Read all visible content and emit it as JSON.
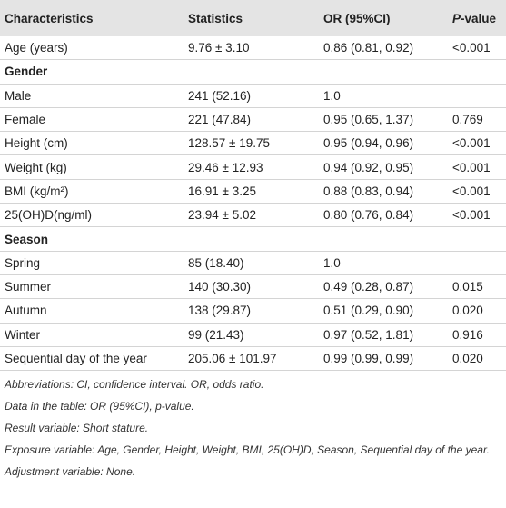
{
  "table": {
    "header": [
      "Characteristics",
      "Statistics",
      "OR (95%CI)",
      {
        "em": "P",
        "text": "-value"
      }
    ],
    "rows": [
      [
        "Age (years)",
        "9.76 ± 3.10",
        "0.86 (0.81, 0.92)",
        "<0.001"
      ],
      [
        "Gender"
      ],
      [
        "Male",
        "241 (52.16)",
        "1.0",
        ""
      ],
      [
        "Female",
        "221 (47.84)",
        "0.95 (0.65, 1.37)",
        "0.769"
      ],
      [
        "Height (cm)",
        "128.57 ± 19.75",
        "0.95 (0.94, 0.96)",
        "<0.001"
      ],
      [
        "Weight (kg)",
        "29.46 ± 12.93",
        "0.94 (0.92, 0.95)",
        "<0.001"
      ],
      [
        "BMI (kg/m²)",
        "16.91 ± 3.25",
        "0.88 (0.83, 0.94)",
        "<0.001"
      ],
      [
        "25(OH)D(ng/ml)",
        "23.94 ± 5.02",
        "0.80 (0.76, 0.84)",
        "<0.001"
      ],
      [
        "Season"
      ],
      [
        "Spring",
        "85 (18.40)",
        "1.0",
        ""
      ],
      [
        "Summer",
        "140 (30.30)",
        "0.49 (0.28, 0.87)",
        "0.015"
      ],
      [
        "Autumn",
        "138 (29.87)",
        "0.51 (0.29, 0.90)",
        "0.020"
      ],
      [
        "Winter",
        "99 (21.43)",
        "0.97 (0.52, 1.81)",
        "0.916"
      ],
      [
        "Sequential day of the year",
        "205.06 ± 101.97",
        "0.99 (0.99, 0.99)",
        "0.020"
      ]
    ]
  },
  "notes": [
    "Abbreviations: CI, confidence interval. OR, odds ratio.",
    "Data in the table: OR (95%CI), p-value.",
    "Result variable: Short stature.",
    "Exposure variable: Age, Gender, Height, Weight, BMI, 25(OH)D, Season, Sequential day of the year.",
    "Adjustment variable: None."
  ]
}
